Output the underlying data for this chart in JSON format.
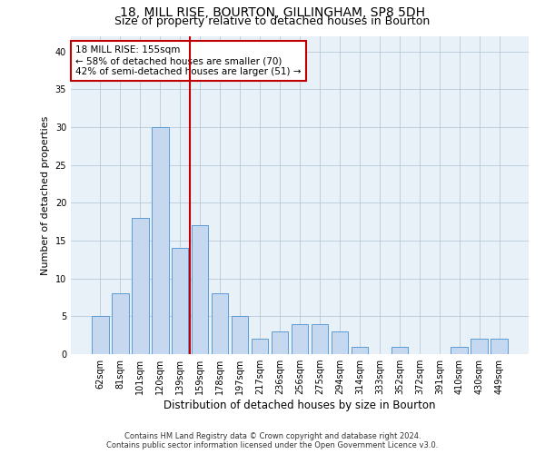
{
  "title_line1": "18, MILL RISE, BOURTON, GILLINGHAM, SP8 5DH",
  "title_line2": "Size of property relative to detached houses in Bourton",
  "xlabel": "Distribution of detached houses by size in Bourton",
  "ylabel": "Number of detached properties",
  "categories": [
    "62sqm",
    "81sqm",
    "101sqm",
    "120sqm",
    "139sqm",
    "159sqm",
    "178sqm",
    "197sqm",
    "217sqm",
    "236sqm",
    "256sqm",
    "275sqm",
    "294sqm",
    "314sqm",
    "333sqm",
    "352sqm",
    "372sqm",
    "391sqm",
    "410sqm",
    "430sqm",
    "449sqm"
  ],
  "values": [
    5,
    8,
    18,
    30,
    14,
    17,
    8,
    5,
    2,
    3,
    4,
    4,
    3,
    1,
    0,
    1,
    0,
    0,
    1,
    2,
    2
  ],
  "bar_color": "#c5d8f0",
  "bar_edge_color": "#5b9bd5",
  "vline_pos": 4.5,
  "vline_color": "#c00000",
  "annotation_line1": "18 MILL RISE: 155sqm",
  "annotation_line2": "← 58% of detached houses are smaller (70)",
  "annotation_line3": "42% of semi-detached houses are larger (51) →",
  "annotation_box_color": "#ffffff",
  "annotation_box_edge": "#c00000",
  "ylim": [
    0,
    42
  ],
  "yticks": [
    0,
    5,
    10,
    15,
    20,
    25,
    30,
    35,
    40
  ],
  "footer_line1": "Contains HM Land Registry data © Crown copyright and database right 2024.",
  "footer_line2": "Contains public sector information licensed under the Open Government Licence v3.0.",
  "plot_bg_color": "#e8f0f8",
  "title1_fontsize": 10,
  "title2_fontsize": 9,
  "tick_fontsize": 7,
  "ylabel_fontsize": 8,
  "xlabel_fontsize": 8.5,
  "footer_fontsize": 6,
  "annotation_fontsize": 7.5
}
